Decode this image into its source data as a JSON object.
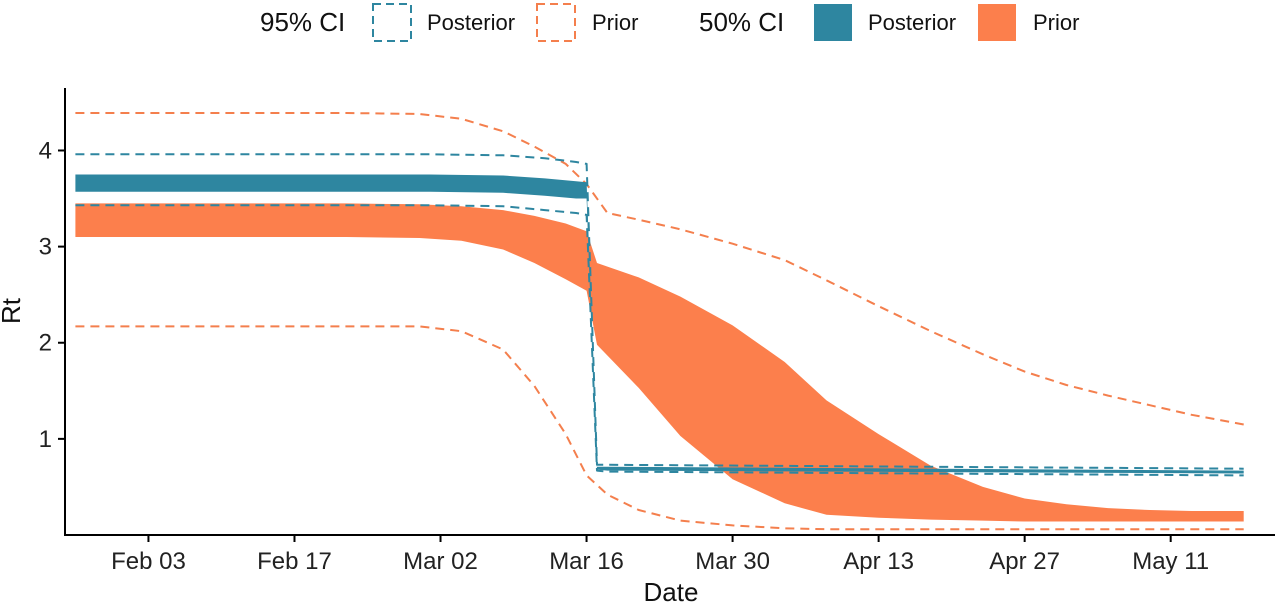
{
  "chart_data": {
    "type": "area",
    "xlabel": "Date",
    "ylabel": "Rt",
    "x_ticks": [
      "Feb 03",
      "Feb 17",
      "Mar 02",
      "Mar 16",
      "Mar 30",
      "Apr 13",
      "Apr 27",
      "May 11"
    ],
    "y_ticks": [
      "1",
      "2",
      "3",
      "4"
    ],
    "xlim": [
      "2020-01-26",
      "2020-05-21"
    ],
    "ylim": [
      0,
      4.65
    ],
    "legend": {
      "position": "top",
      "groups": [
        {
          "title": "95% CI",
          "entries": [
            {
              "label": "Posterior",
              "style": "dashed",
              "color": "#2E86A0"
            },
            {
              "label": "Prior",
              "style": "dashed",
              "color": "#F47F4D"
            }
          ]
        },
        {
          "title": "50% CI",
          "entries": [
            {
              "label": "Posterior",
              "style": "filled",
              "color": "#2E86A0"
            },
            {
              "label": "Prior",
              "style": "filled",
              "color": "#FC7F4C"
            }
          ]
        }
      ]
    },
    "series": [
      {
        "name": "Prior",
        "ci": "95%",
        "style": "dashed",
        "color": "#F47F4D",
        "x": [
          "2020-01-27",
          "2020-02-01",
          "2020-02-08",
          "2020-02-15",
          "2020-02-22",
          "2020-02-29",
          "2020-03-04",
          "2020-03-08",
          "2020-03-11",
          "2020-03-14",
          "2020-03-16",
          "2020-03-18",
          "2020-03-21",
          "2020-03-25",
          "2020-03-30",
          "2020-04-04",
          "2020-04-08",
          "2020-04-13",
          "2020-04-18",
          "2020-04-23",
          "2020-04-27",
          "2020-05-01",
          "2020-05-05",
          "2020-05-09",
          "2020-05-13",
          "2020-05-18"
        ],
        "upper": [
          4.39,
          4.39,
          4.39,
          4.39,
          4.39,
          4.38,
          4.33,
          4.2,
          4.04,
          3.86,
          3.65,
          3.35,
          3.28,
          3.18,
          3.03,
          2.86,
          2.65,
          2.38,
          2.12,
          1.88,
          1.7,
          1.56,
          1.45,
          1.35,
          1.25,
          1.15
        ],
        "lower": [
          2.17,
          2.17,
          2.17,
          2.17,
          2.17,
          2.17,
          2.12,
          1.93,
          1.55,
          1.05,
          0.62,
          0.42,
          0.26,
          0.15,
          0.1,
          0.07,
          0.06,
          0.06,
          0.06,
          0.06,
          0.06,
          0.06,
          0.06,
          0.06,
          0.06,
          0.06
        ]
      },
      {
        "name": "Prior",
        "ci": "50%",
        "style": "filled",
        "color": "#FC7F4C",
        "x": [
          "2020-01-27",
          "2020-02-01",
          "2020-02-08",
          "2020-02-15",
          "2020-02-22",
          "2020-02-29",
          "2020-03-04",
          "2020-03-08",
          "2020-03-11",
          "2020-03-14",
          "2020-03-16",
          "2020-03-17",
          "2020-03-21",
          "2020-03-25",
          "2020-03-30",
          "2020-04-04",
          "2020-04-08",
          "2020-04-13",
          "2020-04-18",
          "2020-04-23",
          "2020-04-27",
          "2020-05-01",
          "2020-05-05",
          "2020-05-09",
          "2020-05-13",
          "2020-05-18"
        ],
        "upper": [
          3.45,
          3.45,
          3.45,
          3.45,
          3.45,
          3.44,
          3.42,
          3.38,
          3.32,
          3.24,
          3.16,
          2.83,
          2.68,
          2.48,
          2.18,
          1.8,
          1.4,
          1.05,
          0.72,
          0.5,
          0.38,
          0.32,
          0.28,
          0.26,
          0.25,
          0.25
        ],
        "lower": [
          3.1,
          3.1,
          3.1,
          3.1,
          3.1,
          3.09,
          3.06,
          2.97,
          2.83,
          2.66,
          2.54,
          1.98,
          1.53,
          1.03,
          0.58,
          0.33,
          0.21,
          0.18,
          0.16,
          0.15,
          0.14,
          0.14,
          0.14,
          0.14,
          0.14,
          0.14
        ]
      },
      {
        "name": "Posterior",
        "ci": "95%",
        "style": "dashed",
        "color": "#2E86A0",
        "x": [
          "2020-01-27",
          "2020-02-08",
          "2020-02-22",
          "2020-03-01",
          "2020-03-08",
          "2020-03-12",
          "2020-03-15",
          "2020-03-16",
          "2020-03-17",
          "2020-03-18",
          "2020-05-18"
        ],
        "upper": [
          3.96,
          3.96,
          3.96,
          3.96,
          3.95,
          3.92,
          3.88,
          3.86,
          0.73,
          0.73,
          0.69
        ],
        "lower": [
          3.43,
          3.43,
          3.43,
          3.43,
          3.42,
          3.38,
          3.35,
          3.33,
          0.67,
          0.66,
          0.62
        ]
      },
      {
        "name": "Posterior",
        "ci": "50%",
        "style": "filled",
        "color": "#2E86A0",
        "x": [
          "2020-01-27",
          "2020-02-08",
          "2020-02-22",
          "2020-03-01",
          "2020-03-08",
          "2020-03-12",
          "2020-03-15",
          "2020-03-16",
          "2020-03-17",
          "2020-03-18",
          "2020-05-18"
        ],
        "upper": [
          3.75,
          3.75,
          3.75,
          3.75,
          3.74,
          3.71,
          3.68,
          3.67,
          0.71,
          0.71,
          0.67
        ],
        "lower": [
          3.57,
          3.57,
          3.57,
          3.57,
          3.56,
          3.53,
          3.5,
          3.5,
          0.68,
          0.67,
          0.64
        ]
      }
    ]
  }
}
